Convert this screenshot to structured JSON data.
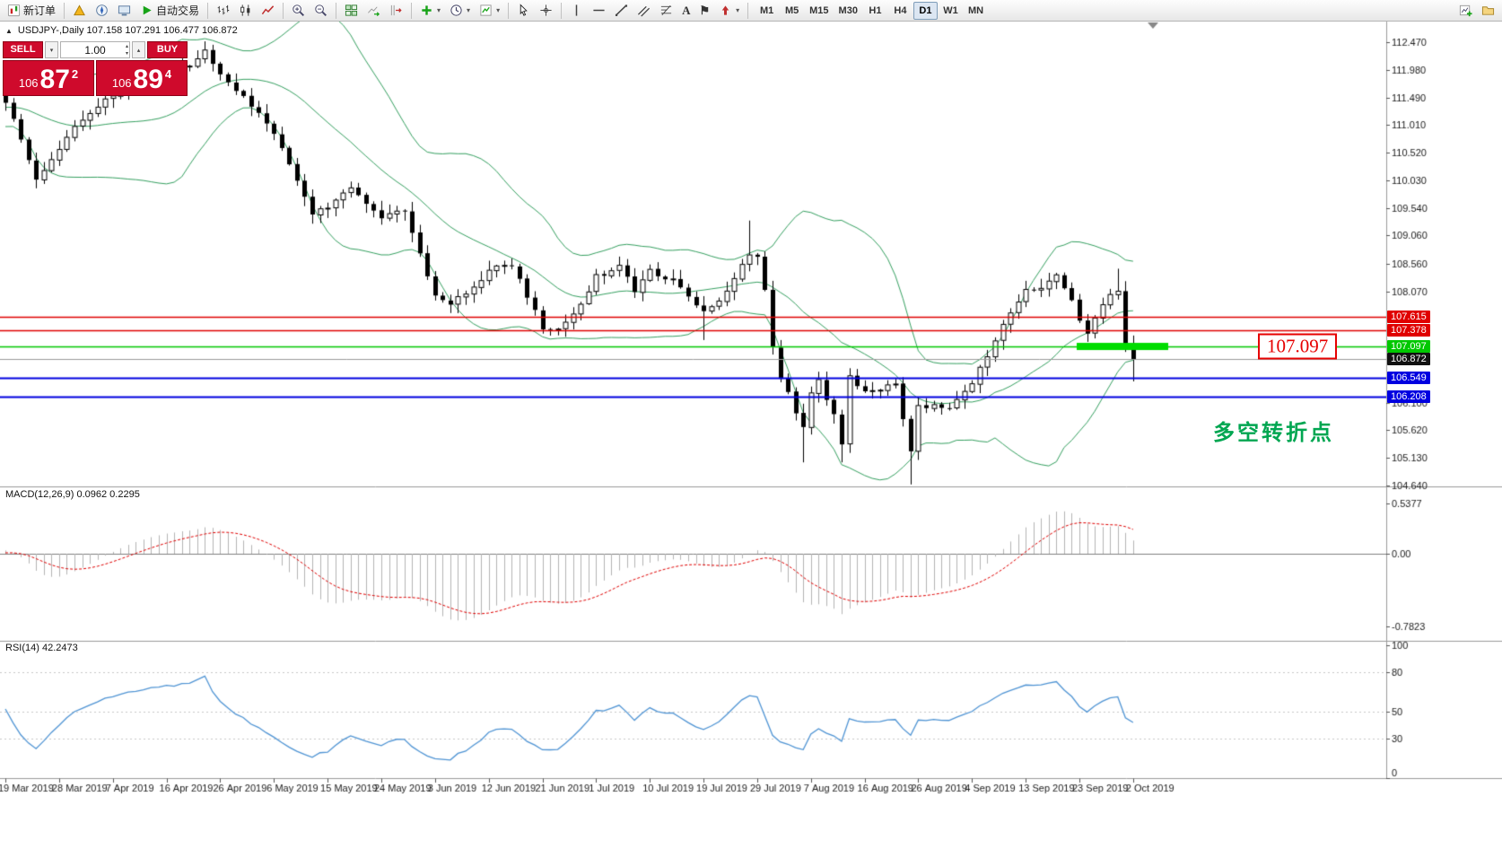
{
  "toolbar": {
    "items": [
      {
        "name": "new-order-button",
        "icon": "new-order-icon",
        "label": "新订单"
      },
      {
        "type": "sep"
      },
      {
        "name": "market-watch-button",
        "icon": "market-watch-icon"
      },
      {
        "name": "navigator-button",
        "icon": "navigator-icon"
      },
      {
        "name": "terminal-button",
        "icon": "terminal-icon"
      },
      {
        "name": "auto-trading-button",
        "icon": "auto-trading-icon",
        "label": "自动交易"
      },
      {
        "type": "sep"
      },
      {
        "name": "bar-chart-button",
        "icon": "bar-chart-icon"
      },
      {
        "name": "candlestick-chart-button",
        "icon": "candlestick-icon"
      },
      {
        "name": "line-chart-button",
        "icon": "line-chart-icon"
      },
      {
        "type": "sep"
      },
      {
        "name": "zoom-in-button",
        "icon": "zoom-in-icon"
      },
      {
        "name": "zoom-out-button",
        "icon": "zoom-out-icon"
      },
      {
        "type": "sep"
      },
      {
        "name": "tile-windows-button",
        "icon": "tile-windows-icon"
      },
      {
        "name": "auto-scroll-button",
        "icon": "auto-scroll-icon"
      },
      {
        "name": "chart-shift-button",
        "icon": "chart-shift-icon"
      },
      {
        "type": "sep"
      },
      {
        "name": "indicators-button",
        "icon": "indicators-icon",
        "caret": true
      },
      {
        "name": "periods-button",
        "icon": "periods-icon",
        "caret": true
      },
      {
        "name": "templates-button",
        "icon": "templates-icon",
        "caret": true
      },
      {
        "type": "sep"
      },
      {
        "name": "cursor-button",
        "icon": "cursor-icon"
      },
      {
        "name": "crosshair-button",
        "icon": "crosshair-icon"
      },
      {
        "type": "sep"
      },
      {
        "name": "vertical-line-button",
        "icon": "vertical-line-icon"
      },
      {
        "name": "horizontal-line-button",
        "icon": "horizontal-line-icon"
      },
      {
        "name": "trendline-button",
        "icon": "trendline-icon"
      },
      {
        "name": "channel-button",
        "icon": "channel-icon"
      },
      {
        "name": "fibonacci-button",
        "icon": "fibonacci-icon"
      },
      {
        "name": "text-button",
        "glyph": "A"
      },
      {
        "name": "label-button",
        "glyph": "⚑"
      },
      {
        "name": "arrows-button",
        "icon": "arrows-icon",
        "caret": true
      },
      {
        "type": "sep"
      },
      {
        "type": "tf-group"
      },
      {
        "type": "spacer"
      },
      {
        "name": "new-chart-button",
        "icon": "new-chart-icon"
      },
      {
        "name": "profiles-button",
        "icon": "profiles-icon"
      }
    ],
    "timeframes": [
      "M1",
      "M5",
      "M15",
      "M30",
      "H1",
      "H4",
      "D1",
      "W1",
      "MN"
    ],
    "active_timeframe": "D1"
  },
  "symbol_info": {
    "toggle_marker": "▲",
    "text": "USDJPY-,Daily  107.158 107.291 106.477 106.872"
  },
  "trade_panel": {
    "sell_label": "SELL",
    "buy_label": "BUY",
    "volume": "1.00",
    "sell_price": {
      "prefix": "106",
      "big": "87",
      "small": "2"
    },
    "buy_price": {
      "prefix": "106",
      "big": "89",
      "small": "4"
    }
  },
  "levels": [
    {
      "label": "107.615",
      "value": 107.615,
      "type": "resistance",
      "color": "#e00000"
    },
    {
      "label": "107.378",
      "value": 107.378,
      "type": "resistance",
      "color": "#e00000"
    },
    {
      "label": "107.097",
      "value": 107.097,
      "type": "pivot",
      "color": "#00c800",
      "thick_segment": true
    },
    {
      "label": "106.872",
      "value": 106.872,
      "type": "current-price",
      "color": "#111111"
    },
    {
      "label": "106.549",
      "value": 106.549,
      "type": "support",
      "color": "#0000e0"
    },
    {
      "label": "106.208",
      "value": 106.208,
      "type": "support",
      "color": "#0000e0"
    }
  ],
  "annotations": {
    "level_label": "107.097",
    "turning_point": "多空转折点",
    "turning_point_color": "#00a651"
  },
  "price_axis": {
    "ticks": [
      "112.470",
      "111.980",
      "111.490",
      "111.010",
      "110.520",
      "110.030",
      "109.540",
      "109.060",
      "108.560",
      "108.070",
      "106.100",
      "105.620",
      "105.130",
      "104.640"
    ]
  },
  "indicators": {
    "macd": {
      "label": "MACD(12,26,9) 0.0962 0.2295",
      "ticks": [
        "0.5377",
        "0.00",
        "-0.7823"
      ]
    },
    "rsi": {
      "label": "RSI(14) 42.2473",
      "ticks": [
        "100",
        "80",
        "50",
        "30",
        "0"
      ],
      "tick_values": [
        100,
        80,
        50,
        30,
        0
      ]
    }
  },
  "date_axis": {
    "labels": [
      "19 Mar 2019",
      "28 Mar 2019",
      "7 Apr 2019",
      "16 Apr 2019",
      "26 Apr 2019",
      "6 May 2019",
      "15 May 2019",
      "24 May 2019",
      "3 Jun 2019",
      "12 Jun 2019",
      "21 Jun 2019",
      "1 Jul 2019",
      "10 Jul 2019",
      "19 Jul 2019",
      "29 Jul 2019",
      "7 Aug 2019",
      "16 Aug 2019",
      "26 Aug 2019",
      "4 Sep 2019",
      "13 Sep 2019",
      "23 Sep 2019",
      "2 Oct 2019"
    ]
  },
  "chart_data": {
    "type": "candlestick",
    "symbol": "USDJPY-",
    "timeframe": "Daily",
    "ohlc_last": {
      "open": 107.158,
      "high": 107.291,
      "low": 106.477,
      "close": 106.872
    },
    "candle_count": 148,
    "close_anchors": [
      [
        0,
        111.4
      ],
      [
        2,
        110.75
      ],
      [
        4,
        110.0
      ],
      [
        7,
        110.6
      ],
      [
        10,
        111.1
      ],
      [
        14,
        111.55
      ],
      [
        18,
        111.8
      ],
      [
        21,
        111.95
      ],
      [
        24,
        112.05
      ],
      [
        26,
        112.32
      ],
      [
        28,
        111.85
      ],
      [
        31,
        111.55
      ],
      [
        35,
        110.85
      ],
      [
        38,
        110.05
      ],
      [
        40,
        109.45
      ],
      [
        42,
        109.55
      ],
      [
        45,
        109.95
      ],
      [
        47,
        109.6
      ],
      [
        49,
        109.35
      ],
      [
        52,
        109.5
      ],
      [
        54,
        108.7
      ],
      [
        56,
        108.05
      ],
      [
        58,
        107.85
      ],
      [
        61,
        108.15
      ],
      [
        63,
        108.45
      ],
      [
        66,
        108.55
      ],
      [
        68,
        107.95
      ],
      [
        70,
        107.45
      ],
      [
        72,
        107.35
      ],
      [
        75,
        107.8
      ],
      [
        77,
        108.35
      ],
      [
        80,
        108.5
      ],
      [
        82,
        108.1
      ],
      [
        84,
        108.45
      ],
      [
        87,
        108.25
      ],
      [
        89,
        108.0
      ],
      [
        91,
        107.75
      ],
      [
        93,
        107.9
      ],
      [
        95,
        108.3
      ],
      [
        97,
        108.75
      ],
      [
        98,
        108.7
      ],
      [
        99,
        108.15
      ],
      [
        100,
        107.1
      ],
      [
        101,
        106.55
      ],
      [
        103,
        105.95
      ],
      [
        104,
        105.65
      ],
      [
        105,
        106.25
      ],
      [
        106,
        106.55
      ],
      [
        108,
        105.85
      ],
      [
        109,
        105.35
      ],
      [
        110,
        106.55
      ],
      [
        112,
        106.35
      ],
      [
        114,
        106.35
      ],
      [
        116,
        106.4
      ],
      [
        117,
        105.85
      ],
      [
        118,
        105.25
      ],
      [
        119,
        106.0
      ],
      [
        121,
        106.1
      ],
      [
        123,
        106.0
      ],
      [
        124,
        106.15
      ],
      [
        126,
        106.4
      ],
      [
        128,
        106.95
      ],
      [
        130,
        107.45
      ],
      [
        132,
        107.85
      ],
      [
        133,
        108.1
      ],
      [
        135,
        108.15
      ],
      [
        137,
        108.35
      ],
      [
        139,
        107.95
      ],
      [
        140,
        107.55
      ],
      [
        141,
        107.35
      ],
      [
        142,
        107.55
      ],
      [
        143,
        107.85
      ],
      [
        144,
        108.0
      ],
      [
        145,
        108.1
      ],
      [
        146,
        107.15
      ],
      [
        147,
        106.87
      ]
    ],
    "extremes": {
      "26": {
        "high": 112.42
      },
      "91": {
        "low": 107.21
      },
      "97": {
        "high": 109.32
      },
      "104": {
        "low": 105.05
      },
      "109": {
        "low": 105.05
      },
      "118": {
        "low": 104.66
      },
      "145": {
        "high": 108.47
      },
      "146": {
        "high": 108.25,
        "low": 107.0
      },
      "147": {
        "high": 107.29,
        "low": 106.48
      }
    },
    "bollinger": {
      "period": 20,
      "deviation": 2
    },
    "visible_price_range": [
      104.64,
      112.47
    ]
  }
}
